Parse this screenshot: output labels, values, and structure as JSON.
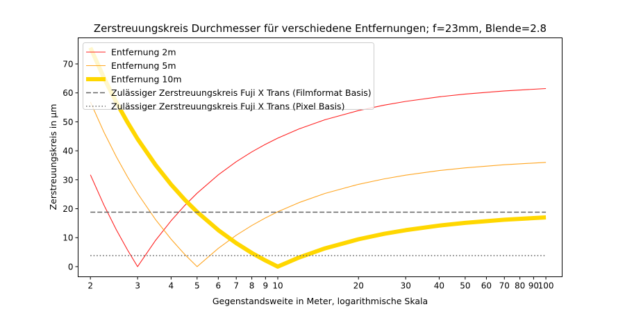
{
  "chart_data": {
    "type": "line",
    "title": "Zerstreuungskreis Durchmesser für verschiedene Entfernungen; f=23mm, Blende=2.8",
    "xlabel": "Gegenstandsweite in Meter, logarithmische Skala",
    "ylabel": "Zerstreuungskreis in µm",
    "xscale": "log",
    "xlim": [
      1.8,
      115
    ],
    "ylim": [
      -3.5,
      79
    ],
    "xticks": [
      2,
      3,
      4,
      5,
      6,
      7,
      8,
      9,
      10,
      20,
      30,
      40,
      50,
      60,
      70,
      80,
      90,
      100
    ],
    "xtick_labels": [
      "2",
      "3",
      "4",
      "5",
      "6",
      "7",
      "8",
      "9",
      "10",
      "20",
      "30",
      "40",
      "50",
      "60",
      "70",
      "80",
      "90",
      "100"
    ],
    "yticks": [
      0,
      10,
      20,
      30,
      40,
      50,
      60,
      70
    ],
    "ytick_labels": [
      "0",
      "10",
      "20",
      "30",
      "40",
      "50",
      "60",
      "70"
    ],
    "grid": false,
    "legend_position": "top-left",
    "x": [
      2,
      2.25,
      2.5,
      2.75,
      3,
      3.5,
      4,
      4.5,
      5,
      6,
      7,
      8,
      9,
      10,
      12,
      15,
      20,
      25,
      30,
      40,
      50,
      70,
      100
    ],
    "series": [
      {
        "name": "Entfernung 2m",
        "color": "#ff2020",
        "style": "solid",
        "weight": "thin",
        "values": [
          31.7,
          21.13,
          12.68,
          5.76,
          0,
          9.06,
          15.85,
          21.13,
          25.36,
          31.7,
          36.23,
          39.63,
          42.27,
          44.38,
          47.55,
          50.72,
          53.89,
          55.79,
          57.06,
          58.65,
          59.6,
          60.68,
          61.5
        ]
      },
      {
        "name": "Entfernung 5m",
        "color": "#ffa520",
        "style": "solid",
        "weight": "thin",
        "values": [
          56.85,
          46.32,
          37.9,
          31.01,
          25.27,
          16.24,
          9.48,
          4.21,
          0,
          6.32,
          10.83,
          14.21,
          16.84,
          18.95,
          22.11,
          25.27,
          28.43,
          30.32,
          31.58,
          33.16,
          34.11,
          35.19,
          36.01
        ]
      },
      {
        "name": "Entfernung 10m",
        "color": "#ffd700",
        "style": "solid",
        "weight": "thick",
        "values": [
          75.6,
          65.1,
          56.7,
          49.83,
          44.1,
          35.1,
          28.35,
          23.1,
          18.9,
          12.6,
          8.1,
          4.73,
          2.1,
          0,
          3.15,
          6.3,
          9.45,
          11.34,
          12.6,
          14.18,
          15.12,
          16.2,
          17.01
        ]
      },
      {
        "name": "Zulässiger Zerstreuungskreis Fuji X Trans (Filmformat Basis)",
        "color": "#666666",
        "style": "dashed",
        "constant": 18.8
      },
      {
        "name": "Zulässiger Zerstreuungskreis Fuji X Trans (Pixel Basis)",
        "color": "#666666",
        "style": "dotted",
        "constant": 3.8
      }
    ]
  }
}
